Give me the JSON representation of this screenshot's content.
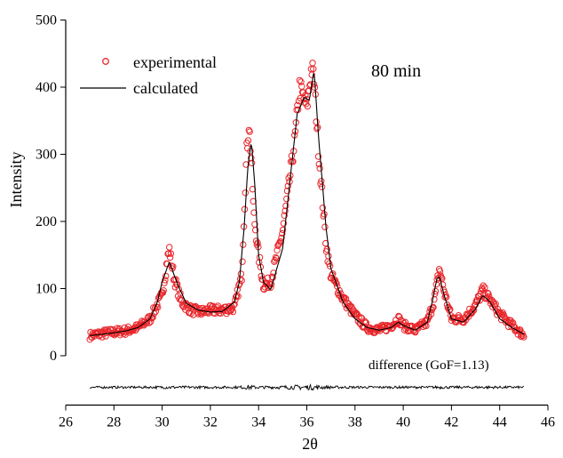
{
  "chart_data": {
    "type": "scatter",
    "title": "",
    "annotation": "80 min",
    "difference_label": "difference (GoF=1.13)",
    "xlabel": "2θ",
    "ylabel": "Intensity",
    "xlim": [
      26,
      46
    ],
    "ylim": [
      0,
      500
    ],
    "xticks": [
      26,
      28,
      30,
      32,
      34,
      36,
      38,
      40,
      42,
      44,
      46
    ],
    "yticks": [
      0,
      100,
      200,
      300,
      400,
      500
    ],
    "grid": false,
    "legend_position": "top-left",
    "colors": {
      "experimental": "#e8262b",
      "calculated": "#000000",
      "difference": "#000000"
    },
    "difference_offset": -47,
    "series": [
      {
        "name": "experimental",
        "style": "open-circle",
        "x": [
          27.0,
          27.5,
          28.0,
          28.5,
          29.0,
          29.5,
          30.0,
          30.2,
          30.3,
          30.5,
          30.8,
          31.2,
          31.6,
          32.0,
          32.5,
          33.0,
          33.3,
          33.5,
          33.6,
          33.7,
          33.8,
          34.0,
          34.2,
          34.5,
          35.0,
          35.5,
          35.7,
          36.0,
          36.2,
          36.3,
          36.5,
          36.8,
          37.0,
          37.5,
          38.0,
          38.5,
          39.0,
          39.5,
          39.8,
          40.0,
          40.5,
          41.0,
          41.3,
          41.5,
          41.7,
          42.0,
          42.5,
          43.0,
          43.3,
          43.5,
          44.0,
          44.5,
          45.0
        ],
        "y": [
          30,
          33,
          35,
          37,
          42,
          55,
          90,
          140,
          158,
          115,
          80,
          68,
          65,
          68,
          68,
          72,
          120,
          300,
          345,
          290,
          210,
          150,
          105,
          110,
          185,
          320,
          400,
          370,
          430,
          410,
          300,
          165,
          120,
          85,
          60,
          42,
          38,
          45,
          55,
          45,
          38,
          50,
          85,
          130,
          95,
          55,
          55,
          75,
          98,
          88,
          62,
          45,
          30
        ]
      },
      {
        "name": "calculated",
        "style": "line",
        "x": [
          27.0,
          27.5,
          28.0,
          28.5,
          29.0,
          29.5,
          29.8,
          30.0,
          30.3,
          30.6,
          31.0,
          31.5,
          32.0,
          32.5,
          33.0,
          33.2,
          33.4,
          33.55,
          33.7,
          33.85,
          34.0,
          34.2,
          34.5,
          35.0,
          35.3,
          35.6,
          35.9,
          36.1,
          36.3,
          36.5,
          36.8,
          37.0,
          37.5,
          38.0,
          38.5,
          39.0,
          39.5,
          39.8,
          40.0,
          40.5,
          41.0,
          41.2,
          41.4,
          41.5,
          41.7,
          42.0,
          42.5,
          43.0,
          43.3,
          43.6,
          44.0,
          44.5,
          45.0
        ],
        "y": [
          30,
          32,
          34,
          37,
          42,
          55,
          80,
          110,
          140,
          110,
          78,
          68,
          65,
          66,
          80,
          110,
          190,
          280,
          320,
          250,
          150,
          110,
          98,
          160,
          260,
          360,
          385,
          380,
          425,
          320,
          190,
          130,
          80,
          55,
          42,
          38,
          42,
          50,
          45,
          38,
          50,
          80,
          115,
          118,
          90,
          55,
          50,
          70,
          90,
          80,
          55,
          42,
          32
        ]
      }
    ]
  }
}
